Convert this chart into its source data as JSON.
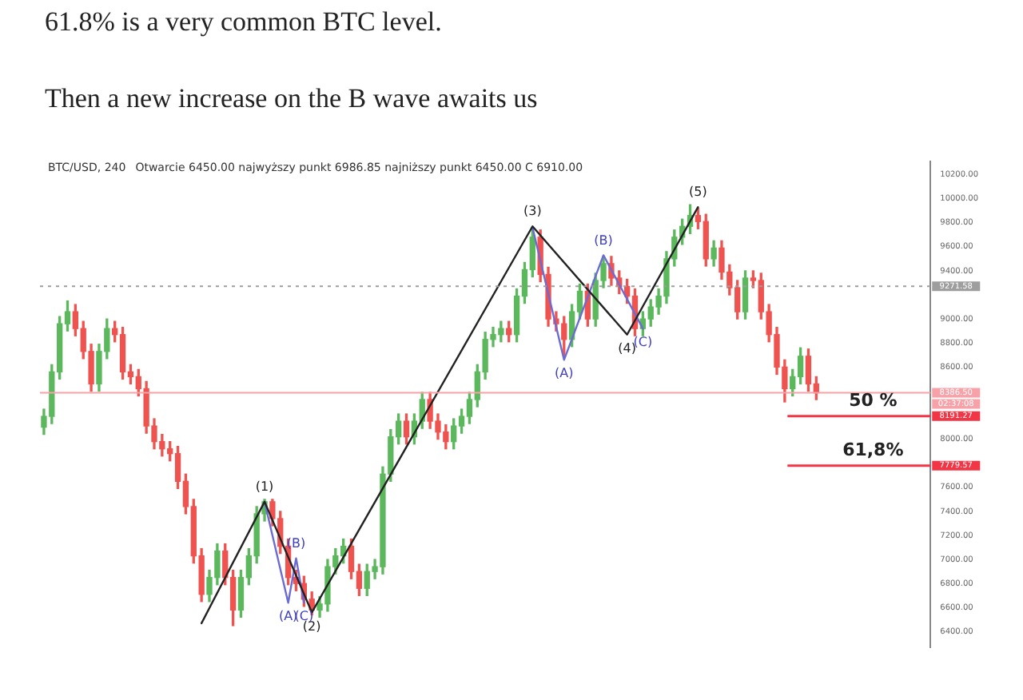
{
  "chart_data": {
    "type": "candlestick",
    "title": "61.8% is a very common BTC level.",
    "subtitle": "Then a new increase on the B wave awaits us",
    "annotations": [
      "BTC/USD, 240",
      "Otwarcie 6450.00 najwyższy punkt 6986.85 najniższy punkt 6450.00 C 6910.00",
      "02:37:08",
      "50 %",
      "61,8%",
      "(1)",
      "(2)",
      "(3)",
      "(4)",
      "(5)",
      "(A)",
      "(B)",
      "(C)",
      "(A)",
      "(B)",
      "(C)"
    ],
    "categories": [
      null,
      null,
      null,
      null,
      null,
      null,
      null,
      null,
      null,
      null,
      null,
      null,
      null,
      null,
      null,
      null,
      null,
      null,
      null,
      null,
      null,
      null,
      null,
      null,
      null,
      null,
      null,
      null,
      null,
      null,
      null,
      null,
      null,
      null,
      null,
      null,
      null,
      null,
      null,
      null,
      null,
      null,
      null,
      null,
      null,
      null,
      null,
      null,
      null,
      null,
      null,
      null,
      null,
      null,
      null,
      null,
      null,
      null,
      null,
      null,
      null,
      null,
      null,
      null,
      null,
      null,
      null,
      null,
      null,
      null,
      null,
      null,
      null,
      null,
      null,
      null,
      null,
      null,
      null,
      null,
      null,
      null,
      null,
      null,
      null,
      null,
      null,
      null,
      null,
      null,
      null,
      null,
      null,
      null,
      null,
      null,
      null,
      null,
      null,
      null,
      null,
      null,
      null,
      null,
      null,
      null,
      null,
      null,
      null,
      null,
      null,
      null,
      null
    ],
    "ohlc": [
      [
        8100,
        8250,
        8040,
        8190
      ],
      [
        8190,
        8620,
        8130,
        8560
      ],
      [
        8560,
        9020,
        8500,
        8960
      ],
      [
        8960,
        9150,
        8900,
        9060
      ],
      [
        9060,
        9120,
        8860,
        8920
      ],
      [
        8920,
        8980,
        8670,
        8730
      ],
      [
        8730,
        8790,
        8400,
        8460
      ],
      [
        8460,
        8790,
        8400,
        8730
      ],
      [
        8730,
        9000,
        8670,
        8920
      ],
      [
        8920,
        8980,
        8810,
        8870
      ],
      [
        8870,
        8930,
        8500,
        8560
      ],
      [
        8560,
        8620,
        8460,
        8520
      ],
      [
        8520,
        8580,
        8360,
        8420
      ],
      [
        8420,
        8480,
        8050,
        8110
      ],
      [
        8110,
        8170,
        7920,
        7980
      ],
      [
        7980,
        8040,
        7860,
        7920
      ],
      [
        7920,
        7980,
        7820,
        7880
      ],
      [
        7880,
        7940,
        7590,
        7650
      ],
      [
        7650,
        7710,
        7380,
        7440
      ],
      [
        7440,
        7500,
        6970,
        7030
      ],
      [
        7030,
        7090,
        6650,
        6710
      ],
      [
        6710,
        6910,
        6650,
        6850
      ],
      [
        6850,
        7130,
        6790,
        7070
      ],
      [
        7070,
        7130,
        6790,
        6850
      ],
      [
        6850,
        6910,
        6450,
        6580
      ],
      [
        6580,
        6910,
        6520,
        6850
      ],
      [
        6850,
        7090,
        6790,
        7030
      ],
      [
        7030,
        7440,
        6970,
        7380
      ],
      [
        7380,
        7500,
        7320,
        7480
      ],
      [
        7480,
        7500,
        7280,
        7340
      ],
      [
        7340,
        7400,
        7050,
        7110
      ],
      [
        7110,
        7170,
        6790,
        6850
      ],
      [
        6850,
        6910,
        6740,
        6800
      ],
      [
        6800,
        6860,
        6610,
        6670
      ],
      [
        6670,
        6730,
        6540,
        6580
      ],
      [
        6580,
        6690,
        6520,
        6630
      ],
      [
        6630,
        7000,
        6570,
        6940
      ],
      [
        6940,
        7090,
        6880,
        7030
      ],
      [
        7030,
        7170,
        6970,
        7110
      ],
      [
        7110,
        7170,
        6840,
        6900
      ],
      [
        6900,
        6960,
        6700,
        6760
      ],
      [
        6760,
        6960,
        6700,
        6900
      ],
      [
        6900,
        7000,
        6840,
        6940
      ],
      [
        6940,
        7770,
        6880,
        7710
      ],
      [
        7710,
        8080,
        7650,
        8020
      ],
      [
        8020,
        8210,
        7960,
        8150
      ],
      [
        8150,
        8210,
        7960,
        8020
      ],
      [
        8020,
        8210,
        7960,
        8150
      ],
      [
        8150,
        8390,
        8090,
        8330
      ],
      [
        8330,
        8390,
        8090,
        8150
      ],
      [
        8150,
        8210,
        8000,
        8060
      ],
      [
        8060,
        8120,
        7920,
        7980
      ],
      [
        7980,
        8170,
        7920,
        8110
      ],
      [
        8110,
        8250,
        8050,
        8190
      ],
      [
        8190,
        8390,
        8130,
        8330
      ],
      [
        8330,
        8620,
        8270,
        8560
      ],
      [
        8560,
        8890,
        8500,
        8830
      ],
      [
        8830,
        8930,
        8770,
        8870
      ],
      [
        8870,
        8980,
        8810,
        8920
      ],
      [
        8920,
        8980,
        8810,
        8870
      ],
      [
        8870,
        9250,
        8810,
        9190
      ],
      [
        9190,
        9470,
        9130,
        9410
      ],
      [
        9410,
        9760,
        9350,
        9680
      ],
      [
        9680,
        9740,
        9310,
        9370
      ],
      [
        9370,
        9430,
        8940,
        9000
      ],
      [
        9000,
        9060,
        8900,
        8960
      ],
      [
        8960,
        9020,
        8680,
        8830
      ],
      [
        8830,
        9120,
        8770,
        9060
      ],
      [
        9060,
        9290,
        9000,
        9230
      ],
      [
        9230,
        9290,
        8940,
        9000
      ],
      [
        9000,
        9380,
        8940,
        9320
      ],
      [
        9320,
        9520,
        9260,
        9460
      ],
      [
        9460,
        9520,
        9280,
        9340
      ],
      [
        9340,
        9400,
        9210,
        9270
      ],
      [
        9270,
        9330,
        9130,
        9190
      ],
      [
        9190,
        9250,
        8860,
        8920
      ],
      [
        8920,
        9060,
        8860,
        9000
      ],
      [
        9000,
        9160,
        8940,
        9100
      ],
      [
        9100,
        9250,
        9040,
        9190
      ],
      [
        9190,
        9560,
        9130,
        9500
      ],
      [
        9500,
        9740,
        9440,
        9680
      ],
      [
        9680,
        9830,
        9620,
        9770
      ],
      [
        9770,
        9950,
        9710,
        9860
      ],
      [
        9860,
        9920,
        9750,
        9810
      ],
      [
        9810,
        9870,
        9440,
        9500
      ],
      [
        9500,
        9650,
        9440,
        9590
      ],
      [
        9590,
        9650,
        9330,
        9390
      ],
      [
        9390,
        9450,
        9200,
        9260
      ],
      [
        9260,
        9320,
        9000,
        9060
      ],
      [
        9060,
        9400,
        9000,
        9340
      ],
      [
        9340,
        9400,
        9260,
        9320
      ],
      [
        9320,
        9380,
        9000,
        9060
      ],
      [
        9060,
        9120,
        8810,
        8870
      ],
      [
        8870,
        8930,
        8540,
        8600
      ],
      [
        8600,
        8660,
        8310,
        8420
      ],
      [
        8420,
        8580,
        8360,
        8520
      ],
      [
        8520,
        8760,
        8460,
        8690
      ],
      [
        8690,
        8750,
        8400,
        8460
      ],
      [
        8460,
        8520,
        8330,
        8386.5
      ],
      null,
      null,
      null,
      null,
      null,
      null,
      null,
      null,
      null,
      null,
      null,
      null,
      null,
      null
    ],
    "colors": [
      "#5cb85c",
      "#5cb85c",
      "#5cb85c",
      "#5cb85c",
      "#ef5350",
      "#ef5350",
      "#ef5350",
      "#5cb85c",
      "#5cb85c",
      "#ef5350",
      "#ef5350",
      "#ef5350",
      "#ef5350",
      "#ef5350",
      "#ef5350",
      "#ef5350",
      "#ef5350",
      "#ef5350",
      "#ef5350",
      "#ef5350",
      "#ef5350",
      "#5cb85c",
      "#5cb85c",
      "#ef5350",
      "#ef5350",
      "#5cb85c",
      "#5cb85c",
      "#5cb85c",
      "#5cb85c",
      "#ef5350",
      "#ef5350",
      "#ef5350",
      "#ef5350",
      "#ef5350",
      "#ef5350",
      "#5cb85c",
      "#5cb85c",
      "#5cb85c",
      "#5cb85c",
      "#ef5350",
      "#ef5350",
      "#5cb85c",
      "#5cb85c",
      "#5cb85c",
      "#5cb85c",
      "#5cb85c",
      "#ef5350",
      "#5cb85c",
      "#5cb85c",
      "#ef5350",
      "#ef5350",
      "#ef5350",
      "#5cb85c",
      "#5cb85c",
      "#5cb85c",
      "#5cb85c",
      "#5cb85c",
      "#5cb85c",
      "#5cb85c",
      "#ef5350",
      "#5cb85c",
      "#5cb85c",
      "#5cb85c",
      "#ef5350",
      "#ef5350",
      "#ef5350",
      "#ef5350",
      "#5cb85c",
      "#5cb85c",
      "#ef5350",
      "#5cb85c",
      "#5cb85c",
      "#ef5350",
      "#ef5350",
      "#ef5350",
      "#ef5350",
      "#5cb85c",
      "#5cb85c",
      "#5cb85c",
      "#5cb85c",
      "#5cb85c",
      "#5cb85c",
      "#5cb85c",
      "#ef5350",
      "#ef5350",
      "#5cb85c",
      "#ef5350",
      "#ef5350",
      "#ef5350",
      "#5cb85c",
      "#ef5350",
      "#ef5350",
      "#ef5350",
      "#ef5350",
      "#ef5350",
      "#5cb85c",
      "#5cb85c",
      "#ef5350",
      "#ef5350",
      null,
      null,
      null,
      null,
      null,
      null,
      null,
      null,
      null,
      null,
      null,
      null,
      null,
      null
    ],
    "series": [
      {
        "type": "line",
        "color": "#222222",
        "values": [
          null,
          null,
          null,
          null,
          null,
          null,
          null,
          null,
          null,
          null,
          null,
          null,
          null,
          null,
          null,
          null,
          null,
          null,
          null,
          null,
          6470,
          null,
          null,
          null,
          null,
          null,
          null,
          null,
          7480,
          null,
          null,
          null,
          null,
          null,
          6560,
          null,
          null,
          null,
          null,
          null,
          null,
          null,
          null,
          null,
          null,
          null,
          null,
          null,
          null,
          null,
          null,
          null,
          null,
          null,
          null,
          null,
          null,
          null,
          null,
          null,
          null,
          null,
          9770,
          null,
          null,
          null,
          null,
          null,
          null,
          null,
          null,
          null,
          null,
          null,
          8870,
          null,
          null,
          null,
          null,
          null,
          null,
          null,
          null,
          9930,
          null,
          null,
          null,
          null,
          null,
          null,
          null,
          null,
          null,
          null,
          null,
          null,
          null,
          null,
          null,
          null,
          null,
          null,
          null,
          null,
          null,
          null,
          null,
          null,
          null,
          null,
          null,
          null,
          null
        ]
      },
      {
        "type": "line",
        "color": "#6b6bd6",
        "values": [
          null,
          null,
          null,
          null,
          null,
          null,
          null,
          null,
          null,
          null,
          null,
          null,
          null,
          null,
          null,
          null,
          null,
          null,
          null,
          null,
          null,
          null,
          null,
          null,
          null,
          null,
          null,
          null,
          7480,
          null,
          null,
          6640,
          7010,
          6640,
          null,
          null,
          null,
          null,
          null,
          null,
          null,
          null,
          null,
          null,
          null,
          null,
          null,
          null,
          null,
          null,
          null,
          null,
          null,
          null,
          null,
          null,
          null,
          null,
          null,
          null,
          null,
          null,
          null,
          null,
          null,
          null,
          null,
          null,
          null,
          null,
          null,
          null,
          null,
          null,
          null,
          null,
          null,
          null,
          null,
          null,
          null,
          null,
          null,
          null,
          null,
          null,
          null,
          null,
          null,
          null,
          null,
          null,
          null,
          null,
          null,
          null,
          null,
          null,
          null,
          null,
          null,
          null,
          null,
          null,
          null,
          null,
          null,
          null,
          null,
          null,
          null,
          null,
          null
        ]
      },
      {
        "type": "line",
        "color": "#6b6bd6",
        "values": [
          null,
          null,
          null,
          null,
          null,
          null,
          null,
          null,
          null,
          null,
          null,
          null,
          null,
          null,
          null,
          null,
          null,
          null,
          null,
          null,
          null,
          null,
          null,
          null,
          null,
          null,
          null,
          null,
          null,
          null,
          null,
          null,
          null,
          null,
          null,
          null,
          null,
          null,
          null,
          null,
          null,
          null,
          null,
          null,
          null,
          null,
          null,
          null,
          null,
          null,
          null,
          null,
          null,
          null,
          null,
          null,
          null,
          null,
          null,
          null,
          null,
          null,
          9760,
          null,
          null,
          null,
          8660,
          null,
          null,
          null,
          null,
          9530,
          null,
          null,
          null,
          null,
          8920,
          null,
          null,
          null,
          null,
          null,
          null,
          null,
          null,
          null,
          null,
          null,
          null,
          null,
          null,
          null,
          null,
          null,
          null,
          null,
          null,
          null,
          null,
          null,
          null,
          null,
          null,
          null,
          null,
          null,
          null,
          null,
          null,
          null,
          null,
          null,
          null
        ]
      }
    ],
    "marker": "none",
    "ylim": [
      6270,
      10310
    ],
    "yticks": [
      {
        "value": 6400,
        "label": "6400.00"
      },
      {
        "value": 6600,
        "label": "6600.00"
      },
      {
        "value": 6800,
        "label": "6800.00"
      },
      {
        "value": 7000,
        "label": "7000.00"
      },
      {
        "value": 7200,
        "label": "7200.00"
      },
      {
        "value": 7400,
        "label": "7400.00"
      },
      {
        "value": 7600,
        "label": "7600.00"
      },
      {
        "value": 8000,
        "label": "8000.00"
      },
      {
        "value": 8600,
        "label": "8600.00"
      },
      {
        "value": 8800,
        "label": "8800.00"
      },
      {
        "value": 9000,
        "label": "9000.00"
      },
      {
        "value": 9400,
        "label": "9400.00"
      },
      {
        "value": 9600,
        "label": "9600.00"
      },
      {
        "value": 9800,
        "label": "9800.00"
      },
      {
        "value": 10000,
        "label": "10000.00"
      },
      {
        "value": 10200,
        "label": "10200.00"
      }
    ],
    "tick_labels": "y",
    "grid": false,
    "legend": false,
    "ref_lines": [
      {
        "axis": "y",
        "value": 9271.58,
        "label": "9271.58",
        "color": "#9e9e9e",
        "line_style": "dotted"
      },
      {
        "axis": "y",
        "value": 8386.5,
        "label": "8386.50",
        "color": "#f7a1a8",
        "line_style": "solid"
      },
      {
        "axis": "y",
        "value": 8191.27,
        "label": "8191.27",
        "color": "#f23645",
        "line_style": "solid"
      },
      {
        "axis": "y",
        "value": 7779.57,
        "label": "7779.57",
        "color": "#f23645",
        "line_style": "solid"
      }
    ]
  }
}
